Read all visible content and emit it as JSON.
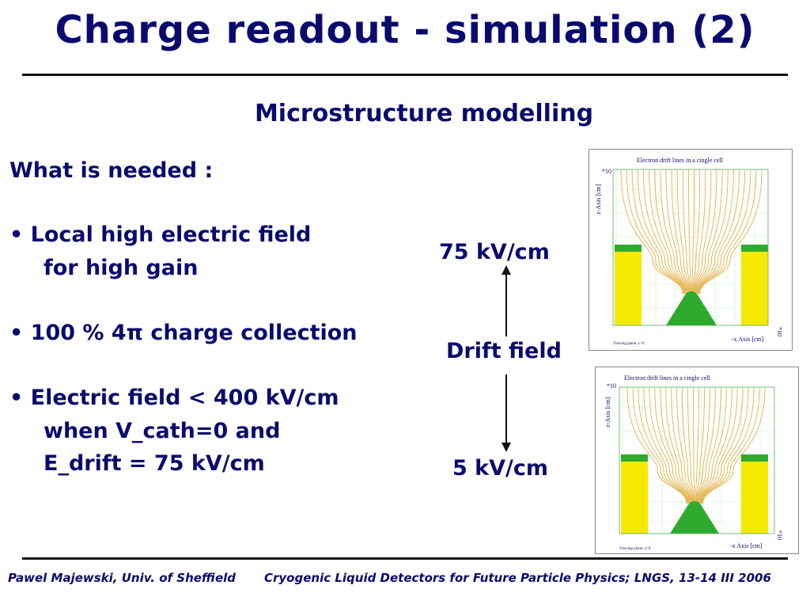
{
  "title": "Charge readout - simulation (2)",
  "subtitle": "Microstructure modelling",
  "left": {
    "heading": "What is needed :",
    "b1_l1": "• Local high electric field",
    "b1_l2": "for high gain",
    "b2_l1": "• 100 % 4π charge collection",
    "b3_l1": "• Electric field < 400 kV/cm",
    "b3_l2": "when V_cath=0 and",
    "b3_l3": "E_drift = 75 kV/cm"
  },
  "labels": {
    "top_field": "75 kV/cm",
    "middle": "Drift field",
    "bottom_field": "5 kV/cm"
  },
  "figures": {
    "top": {
      "caption": "Electron drift lines in a cingle cell",
      "zaxis": "z-Axis [cm]",
      "xaxis": "-x Axis [cm]",
      "exp_z": "*10",
      "exp_x": "*10",
      "footnote": "Viewing plane: y=0"
    },
    "bottom": {
      "caption": "Electron drift lines in a cingle cell",
      "zaxis": "z-Axis [cm]",
      "xaxis": "-x Axis [cm]",
      "exp_z": "*10",
      "exp_x": "*10",
      "footnote": "Viewing plane: y=0"
    }
  },
  "footer": {
    "author": "Pawel Majewski, Univ. of Sheffield",
    "event": "Cryogenic Liquid Detectors for Future Particle Physics; LNGS, 13-14 III 2006"
  },
  "colors": {
    "text": "#0a0a6e",
    "yellow": "#f5e900",
    "green": "#2eaa2e",
    "lines": "#e3b24a"
  }
}
